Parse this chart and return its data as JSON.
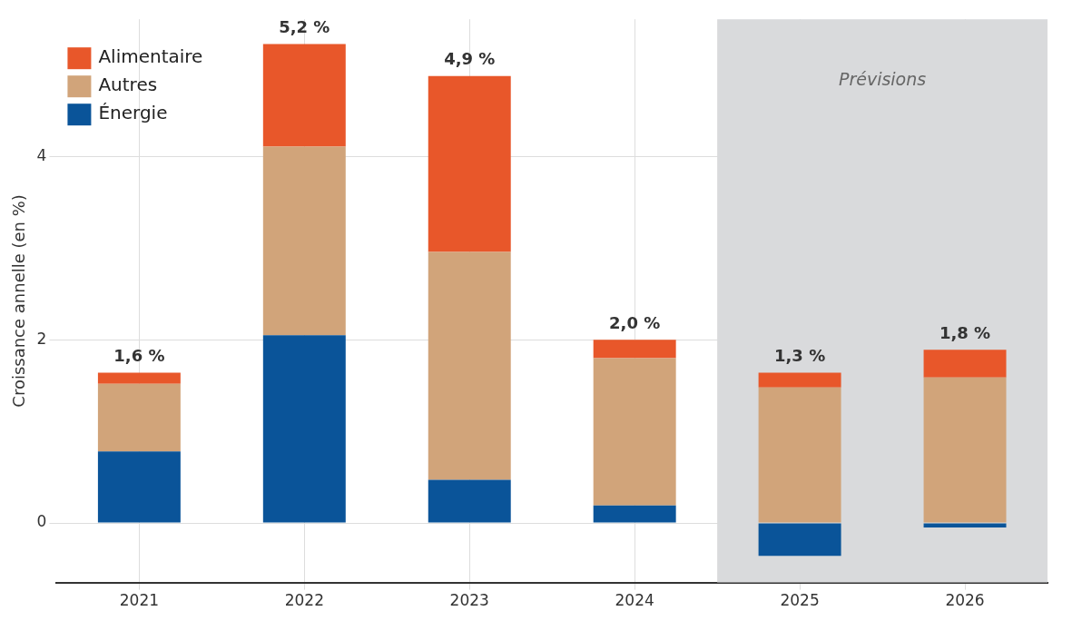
{
  "chart_data": {
    "type": "bar",
    "stacked": true,
    "ylabel": "Croissance annelle (en %)",
    "categories": [
      "2021",
      "2022",
      "2023",
      "2024",
      "2025",
      "2026"
    ],
    "series": [
      {
        "name": "Énergie",
        "color": "#0a5499",
        "values": [
          0.78,
          2.05,
          0.47,
          0.19,
          -0.36,
          -0.05
        ]
      },
      {
        "name": "Autres",
        "color": "#d1a47a",
        "values": [
          0.74,
          2.06,
          2.49,
          1.61,
          1.48,
          1.59
        ]
      },
      {
        "name": "Alimentaire",
        "color": "#e8572a",
        "values": [
          0.12,
          1.12,
          1.92,
          0.2,
          0.16,
          0.3
        ]
      }
    ],
    "totals": [
      "1,6 %",
      "5,2 %",
      "4,9 %",
      "2,0 %",
      "1,3 %",
      "1,8 %"
    ],
    "ylim": [
      -0.65,
      5.5
    ],
    "yticks": [
      0,
      2,
      4
    ],
    "grid": true,
    "legend": "top left",
    "bands": [
      {
        "axis": "x",
        "from": "2025",
        "to": "2026",
        "label": "Prévisions",
        "color": "#d9dadc"
      }
    ]
  }
}
